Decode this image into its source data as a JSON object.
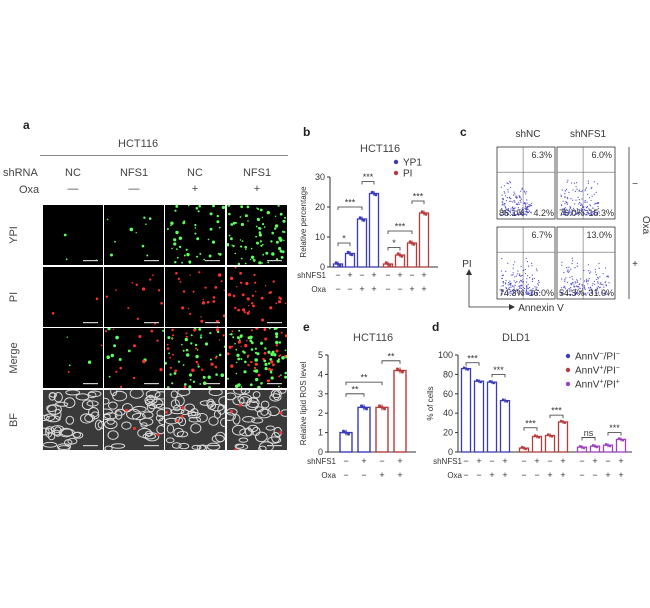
{
  "panel_a": {
    "letter": "a",
    "title": "HCT116",
    "shrna_label": "shRNA",
    "oxa_label": "Oxa",
    "columns": [
      {
        "shrna": "NC",
        "oxa": "—"
      },
      {
        "shrna": "NFS1",
        "oxa": "—"
      },
      {
        "shrna": "NC",
        "oxa": "+"
      },
      {
        "shrna": "NFS1",
        "oxa": "+"
      }
    ],
    "rows": [
      "YPI",
      "PI",
      "Merge",
      "BF"
    ],
    "colors": {
      "ypi": "#5cff5c",
      "pi": "#ff3030",
      "bf": "#3a3a3a"
    }
  },
  "panel_b": {
    "letter": "b",
    "title": "HCT116",
    "row1_label": "shNFS1",
    "row2_label": "Oxa",
    "row1_signs": [
      "−",
      "+",
      "−",
      "+",
      "−",
      "+",
      "−",
      "+"
    ],
    "row2_signs": [
      "−",
      "−",
      "+",
      "+",
      "−",
      "−",
      "+",
      "+"
    ],
    "chart_data": {
      "type": "bar",
      "ylabel": "Relative percentage",
      "ylim": [
        0,
        30
      ],
      "yticks": [
        "0",
        "10",
        "20",
        "30"
      ],
      "series": [
        {
          "name": "YP1",
          "color": "#3b3bb8",
          "values": [
            1,
            4.5,
            16,
            24.5
          ]
        },
        {
          "name": "PI",
          "color": "#b83b3b",
          "values": [
            1,
            4,
            8,
            18
          ]
        }
      ],
      "significance": [
        "*",
        "***",
        "***",
        "*",
        "***",
        "***"
      ]
    }
  },
  "panel_c": {
    "letter": "c",
    "col_headers": [
      "shNC",
      "shNFS1"
    ],
    "side_label": "Oxa",
    "row_signs": [
      "−",
      "+"
    ],
    "ylabel": "PI",
    "xlabel": "Annexin V",
    "quadrants": [
      {
        "ur": "6.3%",
        "ll": "86.1%",
        "lr": "4.2%"
      },
      {
        "ur": "6.0%",
        "ll": "76.0%",
        "lr": "15.3%"
      },
      {
        "ur": "6.7%",
        "ll": "74.3%",
        "lr": "16.0%"
      },
      {
        "ur": "13.0%",
        "ll": "54.3%",
        "lr": "31.0%"
      }
    ]
  },
  "panel_e": {
    "letter": "e",
    "title": "HCT116",
    "row1_label": "shNFS1",
    "row2_label": "Oxa",
    "row1_signs": [
      "−",
      "+",
      "−",
      "+"
    ],
    "row2_signs": [
      "−",
      "−",
      "+",
      "+"
    ],
    "chart_data": {
      "type": "bar",
      "ylabel": "Relative lipid ROS level",
      "ylim": [
        0,
        5
      ],
      "yticks": [
        "0",
        "1",
        "2",
        "3",
        "4",
        "5"
      ],
      "colors": [
        "#3b3bb8",
        "#3b3bb8",
        "#b83b3b",
        "#b83b3b"
      ],
      "values": [
        1.0,
        2.3,
        2.3,
        4.2
      ],
      "significance": [
        "**",
        "**",
        "**"
      ]
    }
  },
  "panel_d": {
    "letter": "d",
    "title": "DLD1",
    "row1_label": "shNFS1",
    "row2_label": "Oxa",
    "row1_signs": [
      "−",
      "+",
      "−",
      "+",
      "−",
      "+",
      "−",
      "+",
      "−",
      "+",
      "−",
      "+"
    ],
    "row2_signs": [
      "−",
      "−",
      "+",
      "+",
      "−",
      "−",
      "+",
      "+",
      "−",
      "−",
      "+",
      "+"
    ],
    "chart_data": {
      "type": "bar",
      "ylabel": "% of cells",
      "ylim": [
        0,
        100
      ],
      "yticks": [
        "0",
        "20",
        "40",
        "60",
        "80",
        "100"
      ],
      "series": [
        {
          "name": "AnnV−/PI−",
          "color": "#3b3bb8",
          "values": [
            86,
            73,
            72,
            53
          ]
        },
        {
          "name": "AnnV+/PI−",
          "color": "#b83b3b",
          "values": [
            4,
            16,
            17,
            31
          ]
        },
        {
          "name": "AnnV+/PI+",
          "color": "#a040c0",
          "values": [
            5,
            6,
            7,
            13
          ]
        }
      ],
      "legend": [
        {
          "main": "AnnV",
          "sup1": "−",
          "mid": "/PI",
          "sup2": "−"
        },
        {
          "main": "AnnV",
          "sup1": "+",
          "mid": "/PI",
          "sup2": "−"
        },
        {
          "main": "AnnV",
          "sup1": "+",
          "mid": "/PI",
          "sup2": "+"
        }
      ],
      "significance": [
        "***",
        "***",
        "***",
        "***",
        "ns",
        "***"
      ]
    }
  }
}
